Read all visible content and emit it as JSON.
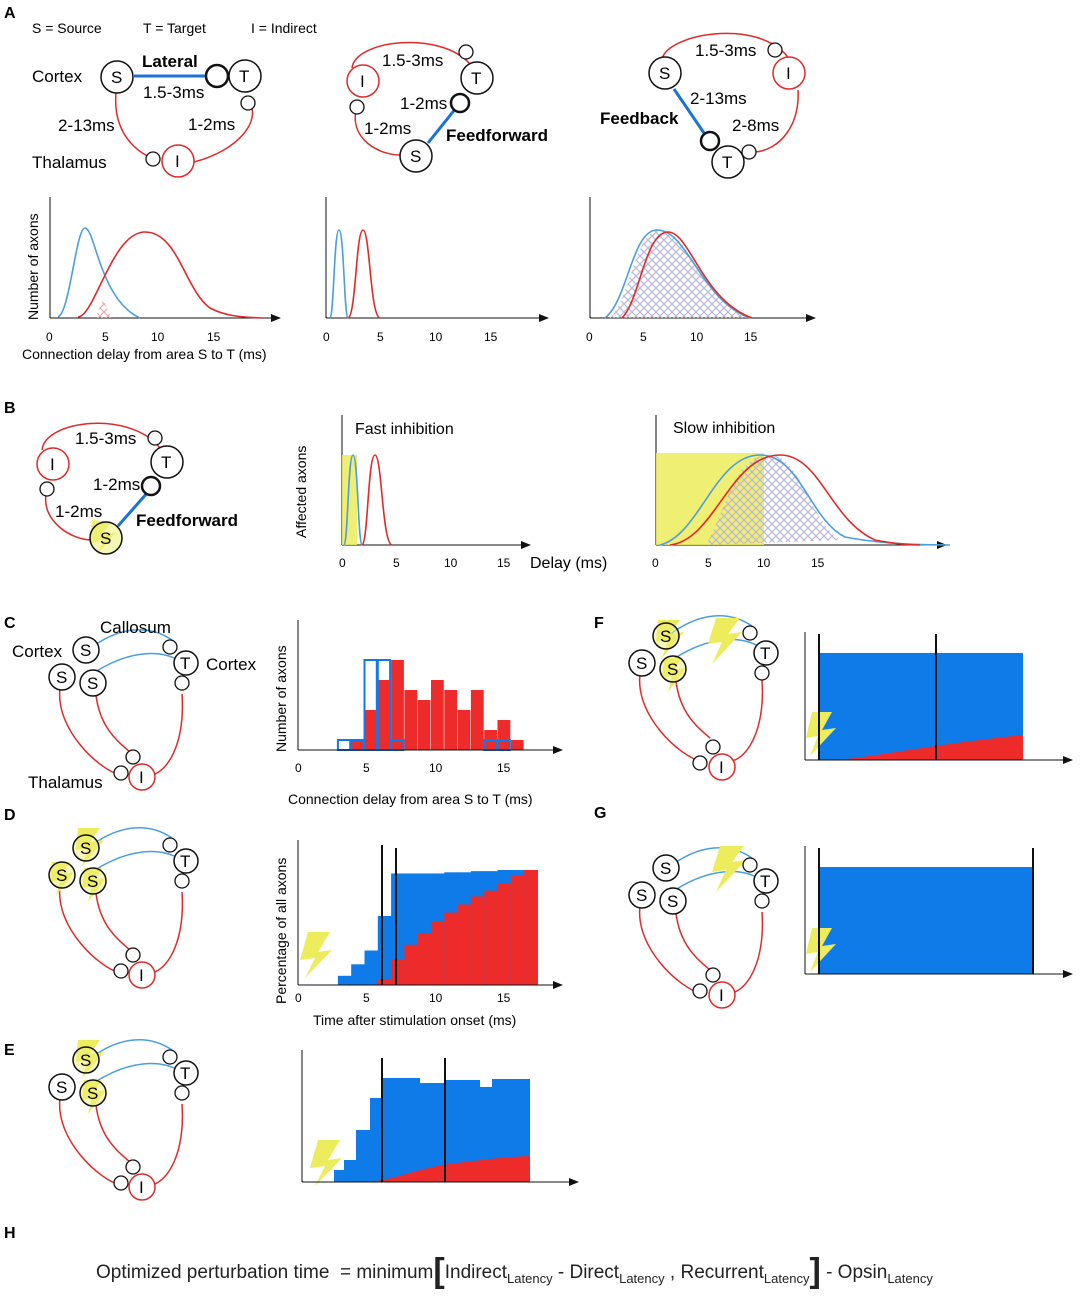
{
  "panel_labels": {
    "A": "A",
    "B": "B",
    "C": "C",
    "D": "D",
    "E": "E",
    "F": "F",
    "G": "G",
    "H": "H"
  },
  "legend": {
    "source": "S = Source",
    "target": "T = Target",
    "indirect": "I = Indirect"
  },
  "node_labels": {
    "source": "S",
    "target": "T",
    "indirect": "I"
  },
  "area_labels": {
    "cortex": "Cortex",
    "thalamus": "Thalamus",
    "callosum": "Callosum"
  },
  "pathways": {
    "lateral": "Lateral",
    "feedforward": "Feedforward",
    "feedback": "Feedback"
  },
  "delays": {
    "d1": "1.5-3ms",
    "d2": "2-13ms",
    "d3": "1-2ms",
    "d4": "2-8ms"
  },
  "axes": {
    "number_of_axons": "Number of axons",
    "connection_delay": "Connection delay from area S to T (ms)",
    "affected_axons": "Affected axons",
    "delay_ms": "Delay (ms)",
    "percentage_axons": "Percentage of all axons",
    "time_after_stim": "Time after stimulation onset (ms)"
  },
  "titles": {
    "fast_inhibition": "Fast inhibition",
    "slow_inhibition": "Slow inhibition"
  },
  "ticks": {
    "t0": "0",
    "t5": "5",
    "t10": "10",
    "t15": "15"
  },
  "formula": {
    "lhs": "Optimized perturbation time",
    "eq": "= minimum",
    "indirect": "Indirect",
    "latency": "Latency",
    "minus": "-",
    "direct": "Direct",
    "comma": ",",
    "recurrent": "Recurrent",
    "minus_opsin": "- Opsin"
  },
  "colors": {
    "direct": "#4a9fde",
    "indirect": "#e02a2a",
    "fill_blue": "#0f7be8",
    "fill_red": "#ee2b2b",
    "light": "#ecec5c"
  },
  "chart_data": [
    {
      "type": "line",
      "id": "A-lateral",
      "xlabel": "Connection delay from area S to T (ms)",
      "ylabel": "Number of axons",
      "xlim": [
        0,
        20
      ],
      "series": [
        {
          "name": "direct",
          "x": [
            0,
            1,
            2,
            3,
            4,
            5,
            6,
            7
          ],
          "values": [
            0.05,
            0.4,
            0.85,
            0.95,
            0.6,
            0.25,
            0.07,
            0.02
          ]
        },
        {
          "name": "indirect",
          "x": [
            2,
            4,
            6,
            8,
            10,
            12,
            14,
            16,
            19
          ],
          "values": [
            0.02,
            0.15,
            0.6,
            0.85,
            0.78,
            0.5,
            0.18,
            0.06,
            0.01
          ]
        }
      ]
    },
    {
      "type": "line",
      "id": "A-feedforward",
      "xlim": [
        0,
        20
      ],
      "series": [
        {
          "name": "direct",
          "x": [
            0,
            0.5,
            1,
            1.5,
            2,
            2.5
          ],
          "values": [
            0.05,
            0.7,
            0.95,
            0.7,
            0.15,
            0.02
          ]
        },
        {
          "name": "indirect",
          "x": [
            1.5,
            2.5,
            3.5,
            4.5,
            5.5,
            6
          ],
          "values": [
            0.02,
            0.5,
            0.95,
            0.4,
            0.04,
            0.01
          ]
        }
      ]
    },
    {
      "type": "line",
      "id": "A-feedback",
      "xlim": [
        0,
        20
      ],
      "series": [
        {
          "name": "direct",
          "x": [
            0,
            3,
            5,
            6,
            7,
            9,
            11,
            13,
            15
          ],
          "values": [
            0.02,
            0.3,
            0.7,
            0.88,
            0.9,
            0.7,
            0.35,
            0.1,
            0.02
          ]
        },
        {
          "name": "indirect",
          "x": [
            3,
            5,
            6,
            7,
            8,
            10,
            12,
            14,
            16
          ],
          "values": [
            0.02,
            0.4,
            0.75,
            0.9,
            0.88,
            0.6,
            0.3,
            0.08,
            0.01
          ]
        }
      ]
    },
    {
      "type": "bar",
      "id": "C-histogram",
      "xlabel": "Connection delay from area S to T (ms)",
      "ylabel": "Number of axons",
      "categories": [
        3,
        4,
        5,
        6,
        7,
        8,
        9,
        10,
        11,
        12,
        13,
        14,
        15,
        16
      ],
      "series": [
        {
          "name": "indirect",
          "values": [
            0,
            1,
            4,
            7,
            9,
            6,
            5,
            7,
            6,
            4,
            6,
            2,
            3,
            1
          ]
        },
        {
          "name": "direct",
          "values": [
            1,
            1,
            9,
            9,
            1,
            0,
            0,
            0,
            0,
            0,
            0,
            1,
            1,
            0
          ]
        }
      ]
    },
    {
      "type": "area",
      "id": "D-cumulative",
      "xlabel": "Time after stimulation onset (ms)",
      "ylabel": "Percentage of all axons",
      "x": [
        3,
        4,
        5,
        6,
        7,
        8,
        9,
        10,
        11,
        12,
        13,
        14,
        15,
        16,
        17
      ],
      "series": [
        {
          "name": "total",
          "values": [
            0.08,
            0.18,
            0.3,
            0.6,
            0.97,
            0.97,
            0.97,
            0.97,
            0.98,
            0.98,
            0.99,
            0.99,
            1,
            1,
            1
          ]
        },
        {
          "name": "indirect",
          "values": [
            0,
            0,
            0,
            0.05,
            0.22,
            0.35,
            0.45,
            0.55,
            0.63,
            0.7,
            0.77,
            0.82,
            0.88,
            0.95,
            1
          ]
        }
      ]
    }
  ]
}
